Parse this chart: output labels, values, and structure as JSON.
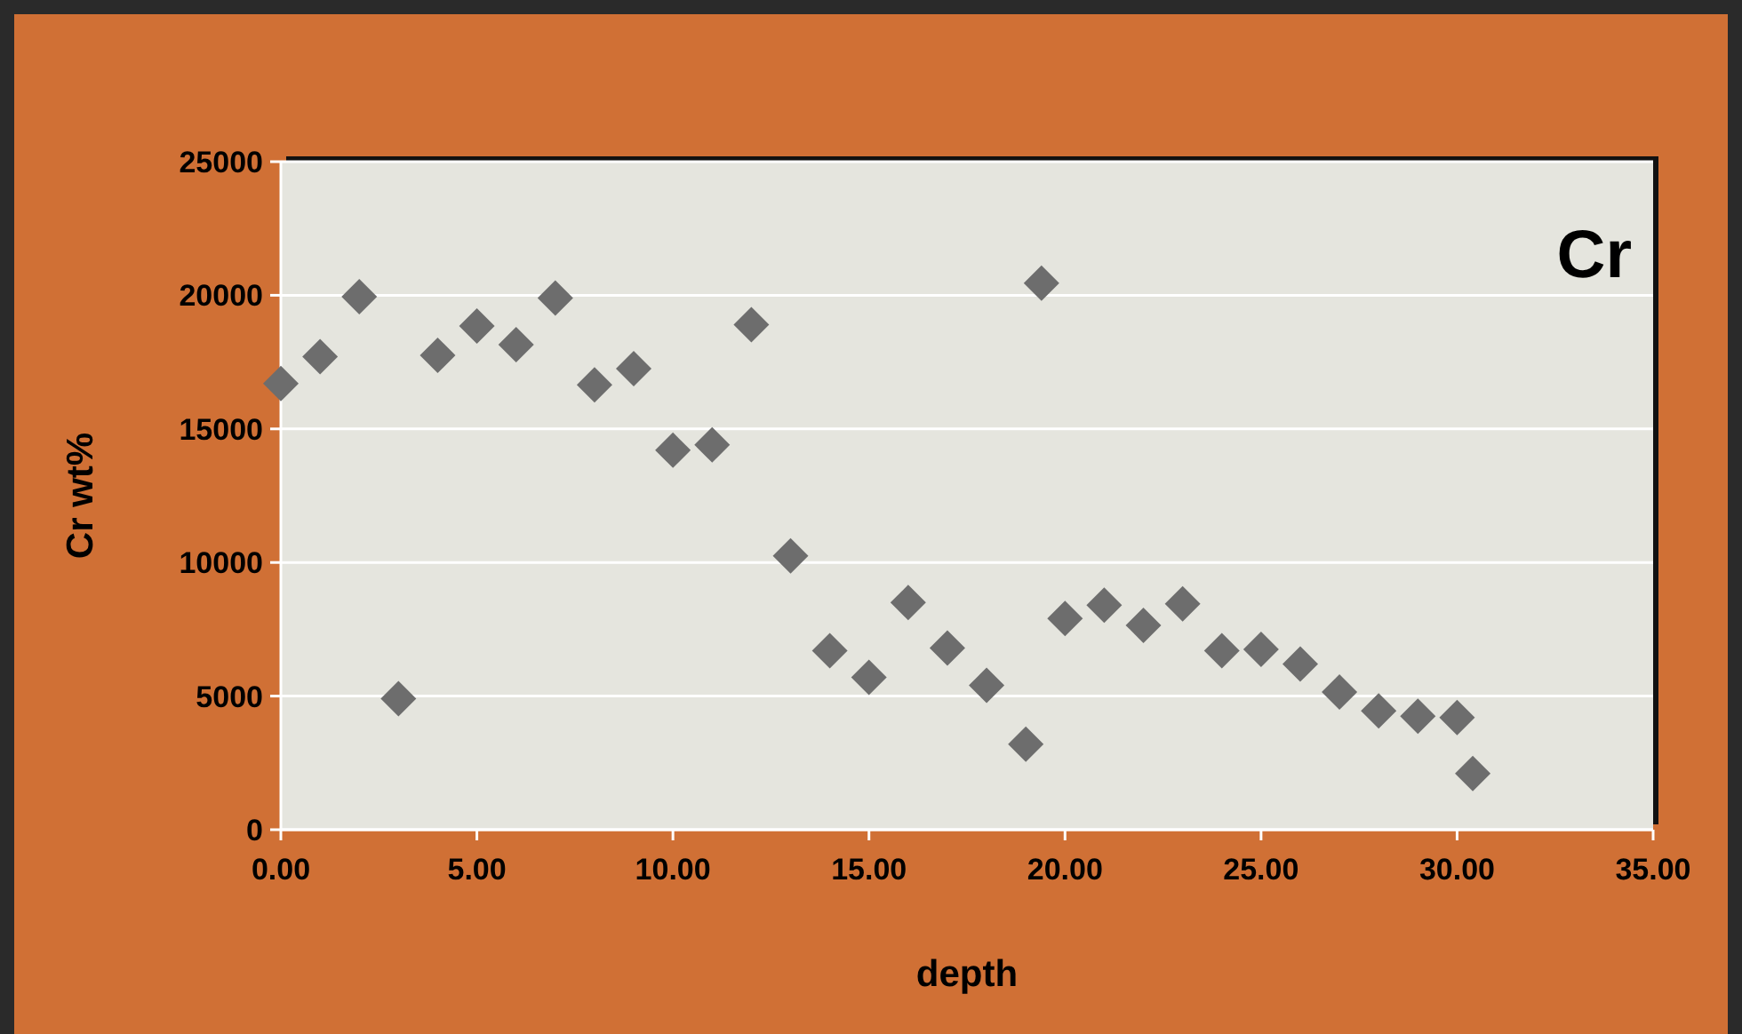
{
  "chart_data": {
    "type": "scatter",
    "title": "Cr",
    "xlabel": "depth",
    "ylabel": "Cr wt%",
    "marker": "diamond",
    "grid": "y",
    "xlim": [
      0,
      35
    ],
    "xticks": [
      {
        "value": 0,
        "label": "0.00"
      },
      {
        "value": 5,
        "label": "5.00"
      },
      {
        "value": 10,
        "label": "10.00"
      },
      {
        "value": 15,
        "label": "15.00"
      },
      {
        "value": 20,
        "label": "20.00"
      },
      {
        "value": 25,
        "label": "25.00"
      },
      {
        "value": 30,
        "label": "30.00"
      },
      {
        "value": 35,
        "label": "35.00"
      }
    ],
    "ylim": [
      0,
      25000
    ],
    "yticks": [
      0,
      5000,
      10000,
      15000,
      20000,
      25000
    ],
    "series": [
      {
        "color": "#6d6d6d",
        "x": [
          0,
          1,
          2,
          3,
          4,
          5,
          6,
          7,
          8,
          9,
          10,
          11,
          12,
          13,
          14,
          15,
          16,
          17,
          18,
          19,
          19.4,
          20,
          21,
          22,
          23,
          24,
          25,
          26,
          27,
          28,
          29,
          30,
          30.4
        ],
        "values": [
          16700,
          17700,
          19950,
          4900,
          17750,
          18850,
          18150,
          19900,
          16650,
          17250,
          14200,
          14400,
          18900,
          10250,
          6700,
          5700,
          8500,
          6800,
          5400,
          3200,
          20450,
          7900,
          8400,
          7650,
          8450,
          6700,
          6750,
          6200,
          5150,
          4450,
          4250,
          4200,
          2100
        ]
      }
    ]
  }
}
